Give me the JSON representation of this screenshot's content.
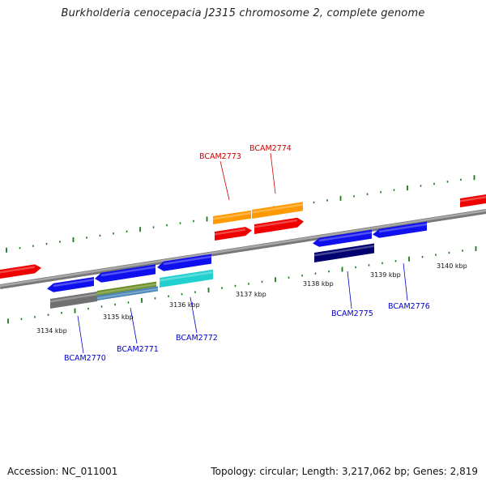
{
  "title": "Burkholderia cenocepacia J2315 chromosome 2, complete genome",
  "footer": {
    "accession": "Accession: NC_011001",
    "topology": "Topology: circular; Length: 3,217,062 bp; Genes: 2,819"
  },
  "colors": {
    "backbone": "#909090",
    "tick": "#1a7a1a",
    "forward_label": "#cc0000",
    "reverse_label": "#0000cc",
    "red": "#ee0000",
    "orange": "#ff9900",
    "blue": "#1010ee",
    "navy": "#00006e",
    "gray": "#707070",
    "olive": "#6b8e23",
    "steelblue": "#4682b4",
    "cyan": "#22d0d0"
  },
  "kbp_labels": [
    "3134 kbp",
    "3135 kbp",
    "3136 kbp",
    "3137 kbp",
    "3138 kbp",
    "3139 kbp",
    "3140 kbp"
  ],
  "gene_labels": {
    "forward": [
      "BCAM2773",
      "BCAM2774"
    ],
    "reverse": [
      "BCAM2770",
      "BCAM2771",
      "BCAM2772",
      "BCAM2775",
      "BCAM2776"
    ]
  }
}
